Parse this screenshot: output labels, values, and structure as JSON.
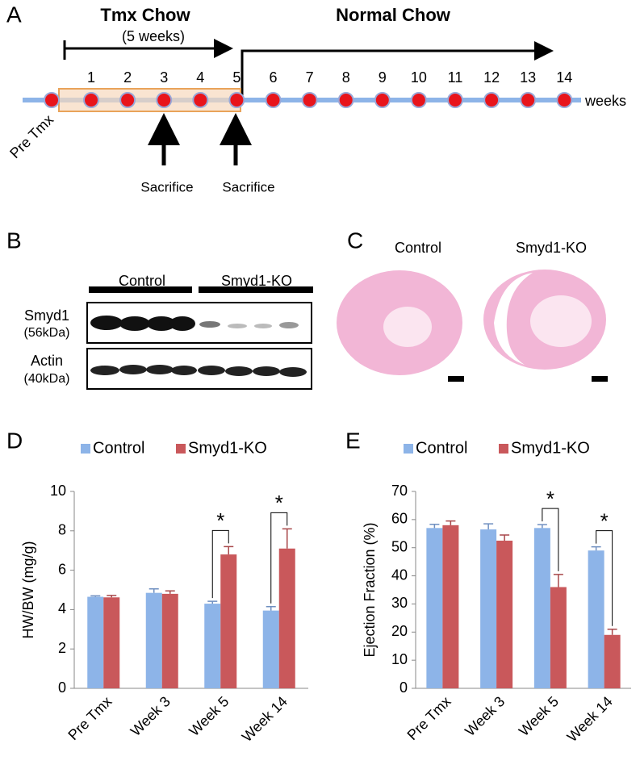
{
  "panel_a": {
    "label": "A",
    "tmx_title": "Tmx Chow",
    "tmx_duration": "(5 weeks)",
    "normal_title": "Normal Chow",
    "pre_label": "Pre Tmx",
    "weeks": [
      "1",
      "2",
      "3",
      "4",
      "5",
      "6",
      "7",
      "8",
      "9",
      "10",
      "11",
      "12",
      "13",
      "14"
    ],
    "unit_label": "weeks",
    "sacrifice_labels": [
      "Sacrifice",
      "Sacrifice"
    ]
  },
  "panel_b": {
    "label": "B",
    "groups": [
      "Control",
      "Smyd1-KO"
    ],
    "rows": [
      {
        "name": "Smyd1",
        "size": "(56kDa)"
      },
      {
        "name": "Actin",
        "size": "(40kDa)"
      }
    ]
  },
  "panel_c": {
    "label": "C",
    "groups": [
      "Control",
      "Smyd1-KO"
    ]
  },
  "chart_data": [
    {
      "type": "bar",
      "label": "D",
      "ylabel": "HW/BW (mg/g)",
      "categories": [
        "Pre Tmx",
        "Week 3",
        "Week 5",
        "Week 14"
      ],
      "series": [
        {
          "name": "Control",
          "color": "#8db4e8",
          "values": [
            4.65,
            4.85,
            4.3,
            3.95
          ],
          "errors": [
            0.05,
            0.2,
            0.12,
            0.2
          ]
        },
        {
          "name": "Smyd1-KO",
          "color": "#c9585b",
          "values": [
            4.62,
            4.8,
            6.8,
            7.1
          ],
          "errors": [
            0.1,
            0.15,
            0.4,
            1.0
          ]
        }
      ],
      "ylim": [
        0,
        10
      ],
      "yticks": [
        0,
        2,
        4,
        6,
        8,
        10
      ],
      "annotations": [
        {
          "category": "Week 5",
          "text": "*"
        },
        {
          "category": "Week 14",
          "text": "*"
        }
      ]
    },
    {
      "type": "bar",
      "label": "E",
      "ylabel": "Ejection Fraction (%)",
      "categories": [
        "Pre Tmx",
        "Week 3",
        "Week 5",
        "Week 14"
      ],
      "series": [
        {
          "name": "Control",
          "color": "#8db4e8",
          "values": [
            57,
            56.5,
            57,
            49
          ],
          "errors": [
            1.3,
            2,
            1.2,
            1.3
          ]
        },
        {
          "name": "Smyd1-KO",
          "color": "#c9585b",
          "values": [
            58,
            52.5,
            36,
            19
          ],
          "errors": [
            1.5,
            2,
            4.5,
            2
          ]
        }
      ],
      "ylim": [
        0,
        70
      ],
      "yticks": [
        0,
        10,
        20,
        30,
        40,
        50,
        60,
        70
      ],
      "annotations": [
        {
          "category": "Week 5",
          "text": "*"
        },
        {
          "category": "Week 14",
          "text": "*"
        }
      ]
    }
  ]
}
